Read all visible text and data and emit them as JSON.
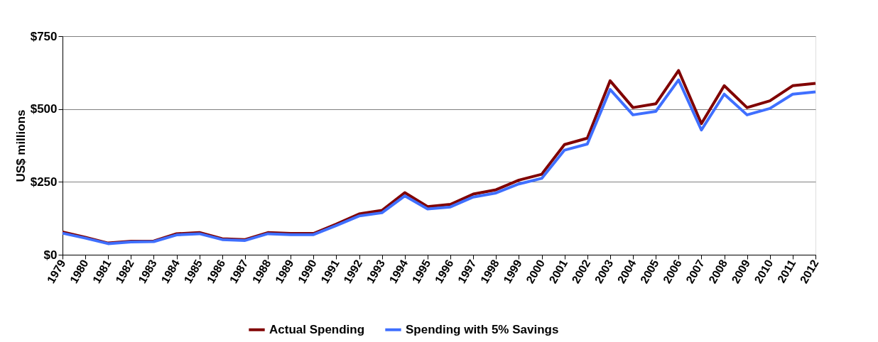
{
  "chart_data": {
    "type": "line",
    "ylabel": "US$ millions",
    "x": [
      1979,
      1980,
      1981,
      1982,
      1983,
      1984,
      1985,
      1986,
      1987,
      1988,
      1989,
      1990,
      1991,
      1992,
      1993,
      1994,
      1995,
      1996,
      1997,
      1998,
      1999,
      2000,
      2001,
      2002,
      2003,
      2004,
      2005,
      2006,
      2007,
      2008,
      2009,
      2010,
      2011,
      2012
    ],
    "xlim": [
      1979,
      2012
    ],
    "xticks": [
      1979,
      1980,
      1981,
      1982,
      1983,
      1984,
      1985,
      1986,
      1987,
      1988,
      1989,
      1990,
      1991,
      1992,
      1993,
      1994,
      1995,
      1996,
      1997,
      1998,
      1999,
      2000,
      2001,
      2002,
      2003,
      2004,
      2005,
      2006,
      2007,
      2008,
      2009,
      2010,
      2011,
      2012
    ],
    "ylim": [
      0,
      750
    ],
    "yticks": [
      {
        "value": 0,
        "label": "$0"
      },
      {
        "value": 250,
        "label": "$250"
      },
      {
        "value": 500,
        "label": "$500"
      },
      {
        "value": 750,
        "label": "$750"
      }
    ],
    "series": [
      {
        "name": "Actual Spending",
        "color": "#800000",
        "values": [
          78,
          60,
          40,
          46,
          47,
          72,
          76,
          55,
          52,
          76,
          73,
          73,
          105,
          140,
          152,
          213,
          165,
          173,
          208,
          223,
          256,
          276,
          378,
          400,
          597,
          505,
          518,
          632,
          450,
          580,
          505,
          528,
          580,
          588
        ]
      },
      {
        "name": "Spending with 5% Savings",
        "color": "#3f6fff",
        "values": [
          74,
          57,
          38,
          44,
          45,
          68,
          72,
          52,
          49,
          72,
          69,
          69,
          100,
          133,
          144,
          202,
          157,
          164,
          198,
          212,
          243,
          262,
          359,
          380,
          567,
          480,
          492,
          600,
          428,
          551,
          480,
          502,
          551,
          559
        ]
      }
    ],
    "grid": "y",
    "legend": "bottom",
    "marker": "none",
    "line_style": "solid"
  }
}
